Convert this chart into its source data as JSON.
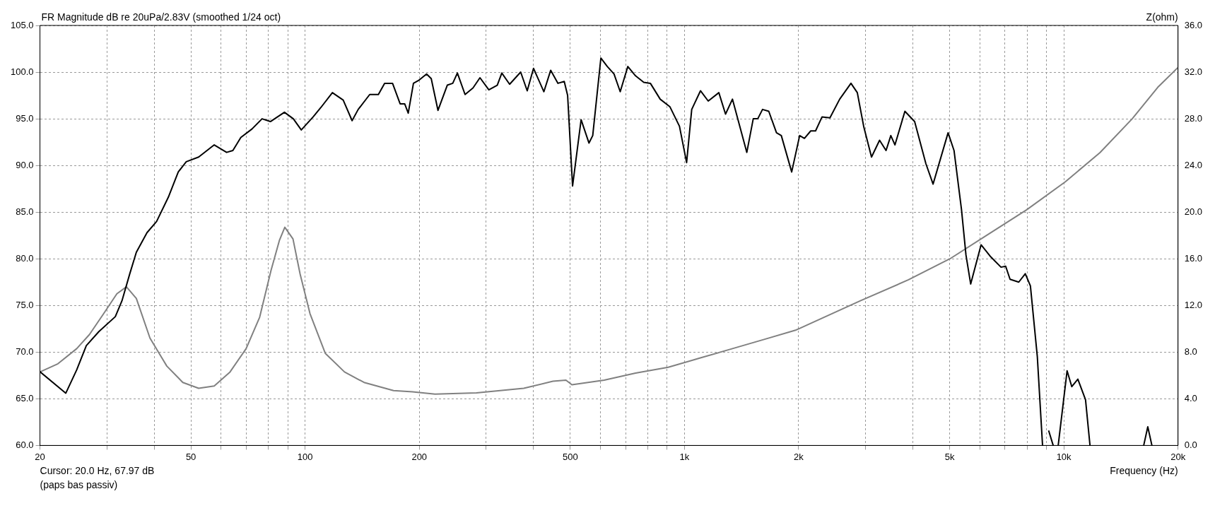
{
  "chart_data": {
    "type": "line",
    "title": "FR Magnitude dB re 20uPa/2.83V (smoothed 1/24 oct)",
    "xlabel": "Frequency (Hz)",
    "y2label": "Z(ohm)",
    "annotations": [
      "Cursor: 20.0 Hz, 67.97 dB",
      "(paps bas passiv)"
    ],
    "log": "x",
    "grid": true,
    "legend": false,
    "marker": "none",
    "line_style": "solid",
    "xlim": [
      20,
      20000
    ],
    "xticks": [
      20,
      {
        "value": 30,
        "label": null
      },
      {
        "value": 40,
        "label": null
      },
      50,
      {
        "value": 60,
        "label": null
      },
      {
        "value": 70,
        "label": null
      },
      {
        "value": 80,
        "label": null
      },
      {
        "value": 90,
        "label": null
      },
      100,
      200,
      {
        "value": 300,
        "label": null
      },
      {
        "value": 400,
        "label": null
      },
      500,
      {
        "value": 600,
        "label": null
      },
      {
        "value": 700,
        "label": null
      },
      {
        "value": 800,
        "label": null
      },
      {
        "value": 900,
        "label": null
      },
      {
        "value": 1000,
        "label": "1k"
      },
      {
        "value": 2000,
        "label": "2k"
      },
      {
        "value": 3000,
        "label": null
      },
      {
        "value": 4000,
        "label": null
      },
      {
        "value": 5000,
        "label": "5k"
      },
      {
        "value": 6000,
        "label": null
      },
      {
        "value": 7000,
        "label": null
      },
      {
        "value": 8000,
        "label": null
      },
      {
        "value": 9000,
        "label": null
      },
      {
        "value": 10000,
        "label": "10k"
      },
      {
        "value": 20000,
        "label": "20k"
      }
    ],
    "ylim": [
      60,
      105
    ],
    "yticks": [
      {
        "value": 60,
        "label": "60.0"
      },
      {
        "value": 65,
        "label": "65.0"
      },
      {
        "value": 70,
        "label": "70.0"
      },
      {
        "value": 75,
        "label": "75.0"
      },
      {
        "value": 80,
        "label": "80.0"
      },
      {
        "value": 85,
        "label": "85.0"
      },
      {
        "value": 90,
        "label": "90.0"
      },
      {
        "value": 95,
        "label": "95.0"
      },
      {
        "value": 100,
        "label": "100.0"
      },
      {
        "value": 105,
        "label": "105.0"
      }
    ],
    "y2lim": [
      0,
      36
    ],
    "y2ticks": [
      {
        "value": 0,
        "label": "0.0"
      },
      {
        "value": 4,
        "label": "4.0"
      },
      {
        "value": 8,
        "label": "8.0"
      },
      {
        "value": 12,
        "label": "12.0"
      },
      {
        "value": 16,
        "label": "16.0"
      },
      {
        "value": 20,
        "label": "20.0"
      },
      {
        "value": 24,
        "label": "24.0"
      },
      {
        "value": 28,
        "label": "28.0"
      },
      {
        "value": 32,
        "label": "32.0"
      },
      {
        "value": 36,
        "label": "36.0"
      }
    ],
    "series": [
      {
        "color": "#000000",
        "x": [
          20,
          23.4,
          25,
          26.5,
          28.6,
          31.6,
          32.9,
          34.5,
          35.9,
          38.3,
          40.6,
          43.6,
          46.3,
          48.6,
          52.4,
          57.6,
          62.1,
          64.5,
          67.7,
          72.4,
          77,
          81,
          88.2,
          93.1,
          97.7,
          105,
          110,
          118,
          126,
          133,
          138,
          148,
          156,
          162,
          170,
          178,
          183,
          187,
          193,
          199,
          209,
          215,
          224,
          237,
          245,
          252,
          264,
          277,
          289,
          305,
          321,
          330,
          346,
          370,
          385,
          400,
          426,
          444,
          464,
          482,
          492,
          507,
          534,
          560,
          573,
          602,
          626,
          652,
          677,
          709,
          743,
          781,
          813,
          863,
          915,
          970,
          1013,
          1045,
          1102,
          1155,
          1232,
          1283,
          1338,
          1460,
          1518,
          1560,
          1606,
          1668,
          1748,
          1800,
          1917,
          2012,
          2071,
          2152,
          2216,
          2305,
          2418,
          2565,
          2747,
          2855,
          2967,
          3112,
          3268,
          3399,
          3499,
          3588,
          3811,
          4043,
          4328,
          4522,
          4953,
          5135,
          5372,
          5521,
          5681,
          6051,
          6419,
          6830,
          7025,
          7215,
          7607,
          7914,
          8164,
          8514,
          8788,
          8950,
          9118,
          9374,
          9500,
          9664,
          10200,
          10495,
          10888,
          11407,
          11721,
          14000,
          16239,
          16645,
          17068
        ],
        "values": [
          67.9,
          65.6,
          68.1,
          70.7,
          72.2,
          73.8,
          75.5,
          78.4,
          80.7,
          82.8,
          84,
          86.6,
          89.3,
          90.4,
          90.9,
          92.2,
          91.4,
          91.6,
          93,
          93.9,
          95,
          94.7,
          95.7,
          95,
          93.8,
          95.2,
          96.2,
          97.8,
          97,
          94.8,
          96,
          97.6,
          97.6,
          98.8,
          98.8,
          96.6,
          96.6,
          95.6,
          98.8,
          99.1,
          99.8,
          99.3,
          95.9,
          98.6,
          98.8,
          99.9,
          97.6,
          98.3,
          99.4,
          98.1,
          98.6,
          99.9,
          98.7,
          100,
          98,
          100.4,
          97.9,
          100.2,
          98.8,
          99,
          97.5,
          87.8,
          94.9,
          92.4,
          93.2,
          101.5,
          100.6,
          99.8,
          97.9,
          100.6,
          99.6,
          98.9,
          98.8,
          97.1,
          96.3,
          94.2,
          90.3,
          96,
          98,
          96.9,
          97.8,
          95.5,
          97.1,
          91.4,
          95,
          95,
          96,
          95.8,
          93.5,
          93.2,
          89.3,
          93.2,
          92.9,
          93.7,
          93.7,
          95.2,
          95.1,
          97.1,
          98.8,
          97.8,
          94.2,
          90.9,
          92.7,
          91.6,
          93.2,
          92.2,
          95.8,
          94.7,
          90.2,
          88,
          93.5,
          91.6,
          85.3,
          80.4,
          77.3,
          81.5,
          80.2,
          79.1,
          79.2,
          77.8,
          77.5,
          78.4,
          77.1,
          69.5,
          60,
          null,
          61.6,
          60,
          null,
          60,
          68,
          66.3,
          67.1,
          64.9,
          60,
          null,
          60,
          62,
          60
        ]
      },
      {
        "color": "#808080",
        "axis": "y2",
        "x": [
          20,
          22.3,
          25,
          27,
          29.3,
          31.9,
          33.8,
          35.9,
          39,
          43.2,
          47.6,
          52.4,
          57.6,
          63.4,
          69.9,
          75.9,
          81.3,
          85.6,
          88.4,
          92.9,
          97,
          103,
          113,
          127,
          143,
          171,
          192,
          220,
          283,
          377,
          450,
          487,
          505,
          614,
          743,
          906,
          1101,
          1338,
          1627,
          1970,
          2000,
          2909,
          3896,
          5010,
          6319,
          7981,
          10092,
          12452,
          15143,
          17686,
          20000
        ],
        "values": [
          6.3,
          7,
          8.3,
          9.5,
          11.2,
          13,
          13.6,
          12.6,
          9.2,
          6.8,
          5.4,
          4.9,
          5.1,
          6.3,
          8.3,
          11,
          15,
          17.6,
          18.7,
          17.7,
          14.7,
          11.3,
          7.9,
          6.3,
          5.4,
          4.7,
          4.6,
          4.4,
          4.5,
          4.9,
          5.5,
          5.6,
          5.2,
          5.6,
          6.2,
          6.7,
          7.5,
          8.3,
          9.1,
          9.9,
          10,
          12.4,
          14.2,
          16,
          18.1,
          20.2,
          22.6,
          25.1,
          28,
          30.7,
          32.4
        ]
      }
    ]
  }
}
